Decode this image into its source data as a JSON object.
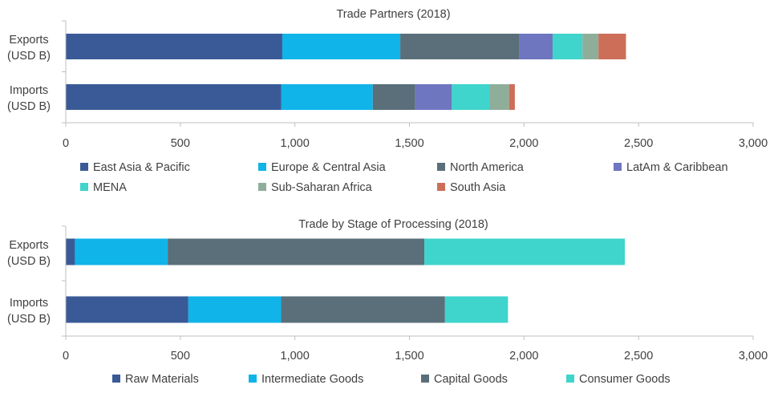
{
  "chart_data": [
    {
      "type": "bar",
      "orientation": "horizontal",
      "stacked": true,
      "title": "Trade Partners (2018)",
      "categories": [
        "Exports\n(USD B)",
        "Imports\n(USD B)"
      ],
      "xlim": [
        0,
        3000
      ],
      "xticks": [
        0,
        500,
        1000,
        1500,
        2000,
        2500,
        3000
      ],
      "xtick_labels": [
        "0",
        "500",
        "1,000",
        "1,500",
        "2,000",
        "2,500",
        "3,000"
      ],
      "grid": false,
      "legend_position": "bottom",
      "series": [
        {
          "name": "East Asia & Pacific",
          "color": "#3a5a97",
          "values": [
            945,
            940
          ]
        },
        {
          "name": "Europe & Central Asia",
          "color": "#10b4e8",
          "values": [
            515,
            400
          ]
        },
        {
          "name": "North America",
          "color": "#5a6f7a",
          "values": [
            520,
            185
          ]
        },
        {
          "name": "LatAm & Caribbean",
          "color": "#6e76c0",
          "values": [
            145,
            160
          ]
        },
        {
          "name": "MENA",
          "color": "#3fd4cc",
          "values": [
            130,
            165
          ]
        },
        {
          "name": "Sub-Saharan Africa",
          "color": "#8fae9a",
          "values": [
            70,
            85
          ]
        },
        {
          "name": "South Asia",
          "color": "#cd6e58",
          "values": [
            120,
            25
          ]
        }
      ]
    },
    {
      "type": "bar",
      "orientation": "horizontal",
      "stacked": true,
      "title": "Trade by Stage of Processing (2018)",
      "categories": [
        "Exports\n(USD B)",
        "Imports\n(USD B)"
      ],
      "xlim": [
        0,
        3000
      ],
      "xticks": [
        0,
        500,
        1000,
        1500,
        2000,
        2500,
        3000
      ],
      "xtick_labels": [
        "0",
        "500",
        "1,000",
        "1,500",
        "2,000",
        "2,500",
        "3,000"
      ],
      "grid": false,
      "legend_position": "bottom",
      "series": [
        {
          "name": "Raw Materials",
          "color": "#3a5a97",
          "values": [
            40,
            535
          ]
        },
        {
          "name": "Intermediate Goods",
          "color": "#10b4e8",
          "values": [
            405,
            405
          ]
        },
        {
          "name": "Capital Goods",
          "color": "#5a6f7a",
          "values": [
            1120,
            715
          ]
        },
        {
          "name": "Consumer Goods",
          "color": "#3fd4cc",
          "values": [
            875,
            275
          ]
        }
      ]
    }
  ]
}
